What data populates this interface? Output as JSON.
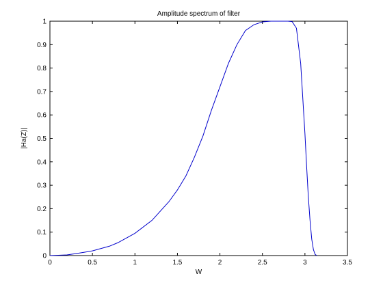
{
  "chart_data": {
    "type": "line",
    "title": "Amplitude spectrum of filter",
    "xlabel": "W",
    "ylabel": "|Ha(Z)|",
    "xlim": [
      0,
      3.5
    ],
    "ylim": [
      0,
      1
    ],
    "xticks": [
      0,
      0.5,
      1,
      1.5,
      2,
      2.5,
      3,
      3.5
    ],
    "xtick_labels": [
      "0",
      "0.5",
      "1",
      "1.5",
      "2",
      "2.5",
      "3",
      "3.5"
    ],
    "yticks": [
      0,
      0.1,
      0.2,
      0.3,
      0.4,
      0.5,
      0.6,
      0.7,
      0.8,
      0.9,
      1
    ],
    "ytick_labels": [
      "0",
      "0.1",
      "0.2",
      "0.3",
      "0.4",
      "0.5",
      "0.6",
      "0.7",
      "0.8",
      "0.9",
      "1"
    ],
    "grid": false,
    "line_color": "#0000cc",
    "series": [
      {
        "x": [
          0,
          0.2,
          0.3,
          0.5,
          0.7,
          0.8,
          1.0,
          1.2,
          1.4,
          1.5,
          1.6,
          1.7,
          1.8,
          1.9,
          2.0,
          2.1,
          2.2,
          2.3,
          2.4,
          2.5,
          2.6,
          2.7,
          2.8,
          2.85,
          2.9,
          2.95,
          3.0,
          3.02,
          3.04,
          3.06,
          3.08,
          3.1,
          3.12,
          3.14
        ],
        "y": [
          0,
          0.003,
          0.008,
          0.02,
          0.04,
          0.055,
          0.095,
          0.15,
          0.23,
          0.28,
          0.34,
          0.42,
          0.51,
          0.62,
          0.72,
          0.82,
          0.9,
          0.96,
          0.985,
          0.997,
          1.0,
          1.0,
          1.0,
          0.998,
          0.97,
          0.82,
          0.52,
          0.38,
          0.25,
          0.15,
          0.07,
          0.025,
          0.005,
          0
        ]
      }
    ]
  }
}
